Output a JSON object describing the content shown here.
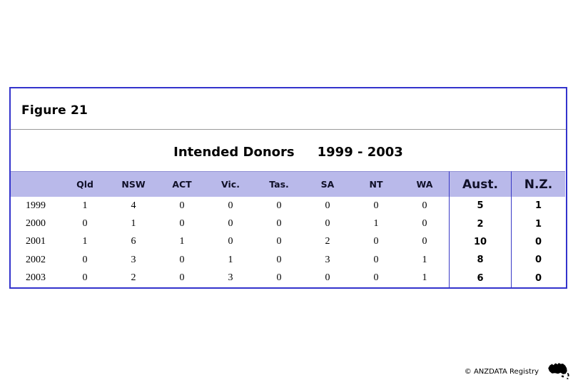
{
  "figure": {
    "label": "Figure 21",
    "title": "Intended Donors",
    "title_range": "1999 - 2003",
    "border_color": "#3333cc",
    "header_bg": "#b9b9ea",
    "separator_color": "#3939c6",
    "divider_color": "#9a9a9a"
  },
  "table": {
    "columns": [
      "Qld",
      "NSW",
      "ACT",
      "Vic.",
      "Tas.",
      "SA",
      "NT",
      "WA",
      "Aust.",
      "N.Z."
    ],
    "rows": [
      {
        "year": "1999",
        "values": [
          "1",
          "4",
          "0",
          "0",
          "0",
          "0",
          "0",
          "0",
          "5",
          "1"
        ]
      },
      {
        "year": "2000",
        "values": [
          "0",
          "1",
          "0",
          "0",
          "0",
          "0",
          "1",
          "0",
          "2",
          "1"
        ]
      },
      {
        "year": "2001",
        "values": [
          "1",
          "6",
          "1",
          "0",
          "0",
          "2",
          "0",
          "0",
          "10",
          "0"
        ]
      },
      {
        "year": "2002",
        "values": [
          "0",
          "3",
          "0",
          "1",
          "0",
          "3",
          "0",
          "1",
          "8",
          "0"
        ]
      },
      {
        "year": "2003",
        "values": [
          "0",
          "2",
          "0",
          "3",
          "0",
          "0",
          "0",
          "1",
          "6",
          "0"
        ]
      }
    ]
  },
  "footer": {
    "copyright": "© ANZDATA Registry",
    "icon": "australia-nz-map-icon"
  },
  "chart_data": {
    "type": "table",
    "figure_label": "Figure 21",
    "title": "Intended Donors 1999 - 2003",
    "x": [
      "1999",
      "2000",
      "2001",
      "2002",
      "2003"
    ],
    "categories": [
      "Qld",
      "NSW",
      "ACT",
      "Vic.",
      "Tas.",
      "SA",
      "NT",
      "WA",
      "Aust.",
      "N.Z."
    ],
    "series": [
      {
        "name": "Qld",
        "values": [
          1,
          0,
          1,
          0,
          0
        ]
      },
      {
        "name": "NSW",
        "values": [
          4,
          1,
          6,
          3,
          2
        ]
      },
      {
        "name": "ACT",
        "values": [
          0,
          0,
          1,
          0,
          0
        ]
      },
      {
        "name": "Vic.",
        "values": [
          0,
          0,
          0,
          1,
          3
        ]
      },
      {
        "name": "Tas.",
        "values": [
          0,
          0,
          0,
          0,
          0
        ]
      },
      {
        "name": "SA",
        "values": [
          0,
          0,
          2,
          3,
          0
        ]
      },
      {
        "name": "NT",
        "values": [
          0,
          1,
          0,
          0,
          0
        ]
      },
      {
        "name": "WA",
        "values": [
          0,
          0,
          0,
          1,
          1
        ]
      },
      {
        "name": "Aust.",
        "values": [
          5,
          2,
          10,
          8,
          6
        ]
      },
      {
        "name": "N.Z.",
        "values": [
          1,
          1,
          0,
          0,
          0
        ]
      }
    ],
    "legend_position": "none",
    "grid": false
  }
}
